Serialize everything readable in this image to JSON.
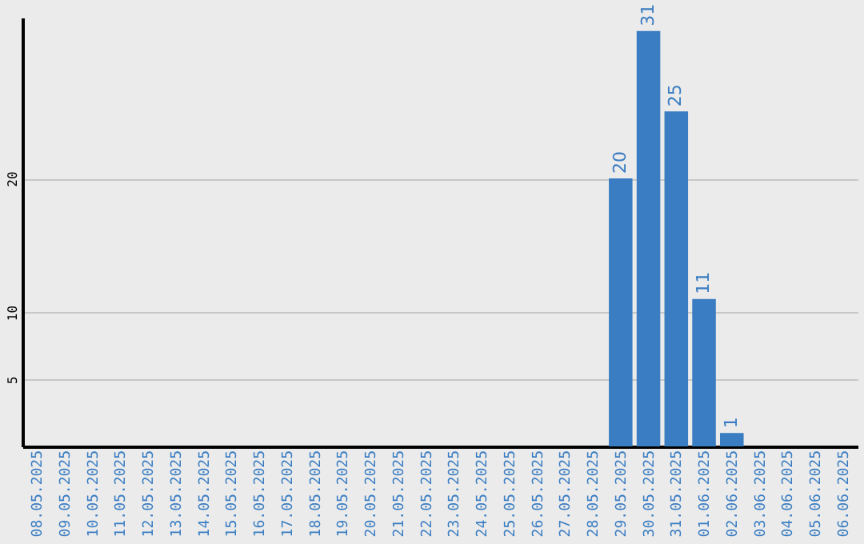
{
  "chart_data": {
    "type": "bar",
    "categories": [
      "08.05.2025",
      "09.05.2025",
      "10.05.2025",
      "11.05.2025",
      "12.05.2025",
      "13.05.2025",
      "14.05.2025",
      "15.05.2025",
      "16.05.2025",
      "17.05.2025",
      "18.05.2025",
      "19.05.2025",
      "20.05.2025",
      "21.05.2025",
      "22.05.2025",
      "23.05.2025",
      "24.05.2025",
      "25.05.2025",
      "26.05.2025",
      "27.05.2025",
      "28.05.2025",
      "29.05.2025",
      "30.05.2025",
      "31.05.2025",
      "01.06.2025",
      "02.06.2025",
      "03.06.2025",
      "04.06.2025",
      "05.06.2025",
      "06.06.2025"
    ],
    "values": [
      0,
      0,
      0,
      0,
      0,
      0,
      0,
      0,
      0,
      0,
      0,
      0,
      0,
      0,
      0,
      0,
      0,
      0,
      0,
      0,
      0,
      20,
      31,
      25,
      11,
      1,
      0,
      0,
      0,
      0
    ],
    "value_labels": [
      null,
      null,
      null,
      null,
      null,
      null,
      null,
      null,
      null,
      null,
      null,
      null,
      null,
      null,
      null,
      null,
      null,
      null,
      null,
      null,
      null,
      "20",
      "31",
      "25",
      "11",
      "1",
      null,
      null,
      null,
      null
    ],
    "color": "#3a7dc2",
    "ylim": [
      0,
      32
    ],
    "yticks": [
      5,
      10,
      20
    ],
    "grid": "y"
  }
}
